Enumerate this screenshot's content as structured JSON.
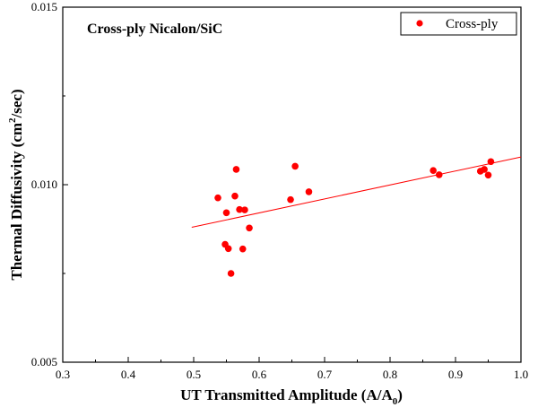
{
  "chart_data": {
    "type": "scatter",
    "annotation": "Cross-ply Nicalon/SiC",
    "xlabel": {
      "main": "UT Transmitted Amplitude (A/A",
      "sub": "0",
      "tail": ")"
    },
    "ylabel": {
      "main": "Thermal Diffusivity (cm",
      "sup": "2",
      "tail": "/sec)"
    },
    "xlim": [
      0.3,
      1.0
    ],
    "ylim": [
      0.005,
      0.015
    ],
    "x_ticks": [
      "0.3",
      "0.4",
      "0.5",
      "0.6",
      "0.7",
      "0.8",
      "0.9",
      "1.0"
    ],
    "y_ticks": [
      "0.005",
      "0.010",
      "0.015"
    ],
    "legend": {
      "label": "Cross-ply",
      "position": "top-right"
    },
    "colors": {
      "points": "#ff0000",
      "fit": "#ff0000",
      "axis": "#000000"
    },
    "series": [
      {
        "name": "Cross-ply",
        "points": [
          [
            0.537,
            0.00963
          ],
          [
            0.55,
            0.00921
          ],
          [
            0.548,
            0.00832
          ],
          [
            0.553,
            0.0082
          ],
          [
            0.557,
            0.0075
          ],
          [
            0.563,
            0.00968
          ],
          [
            0.565,
            0.01043
          ],
          [
            0.57,
            0.0093
          ],
          [
            0.575,
            0.00819
          ],
          [
            0.578,
            0.00929
          ],
          [
            0.585,
            0.00878
          ],
          [
            0.648,
            0.00958
          ],
          [
            0.655,
            0.01052
          ],
          [
            0.676,
            0.0098
          ],
          [
            0.866,
            0.0104
          ],
          [
            0.875,
            0.01028
          ],
          [
            0.938,
            0.01038
          ],
          [
            0.944,
            0.01043
          ],
          [
            0.95,
            0.01027
          ],
          [
            0.954,
            0.01065
          ]
        ]
      }
    ],
    "fit_line": {
      "x": [
        0.497,
        1.0
      ],
      "y": [
        0.0088,
        0.01078
      ]
    }
  }
}
